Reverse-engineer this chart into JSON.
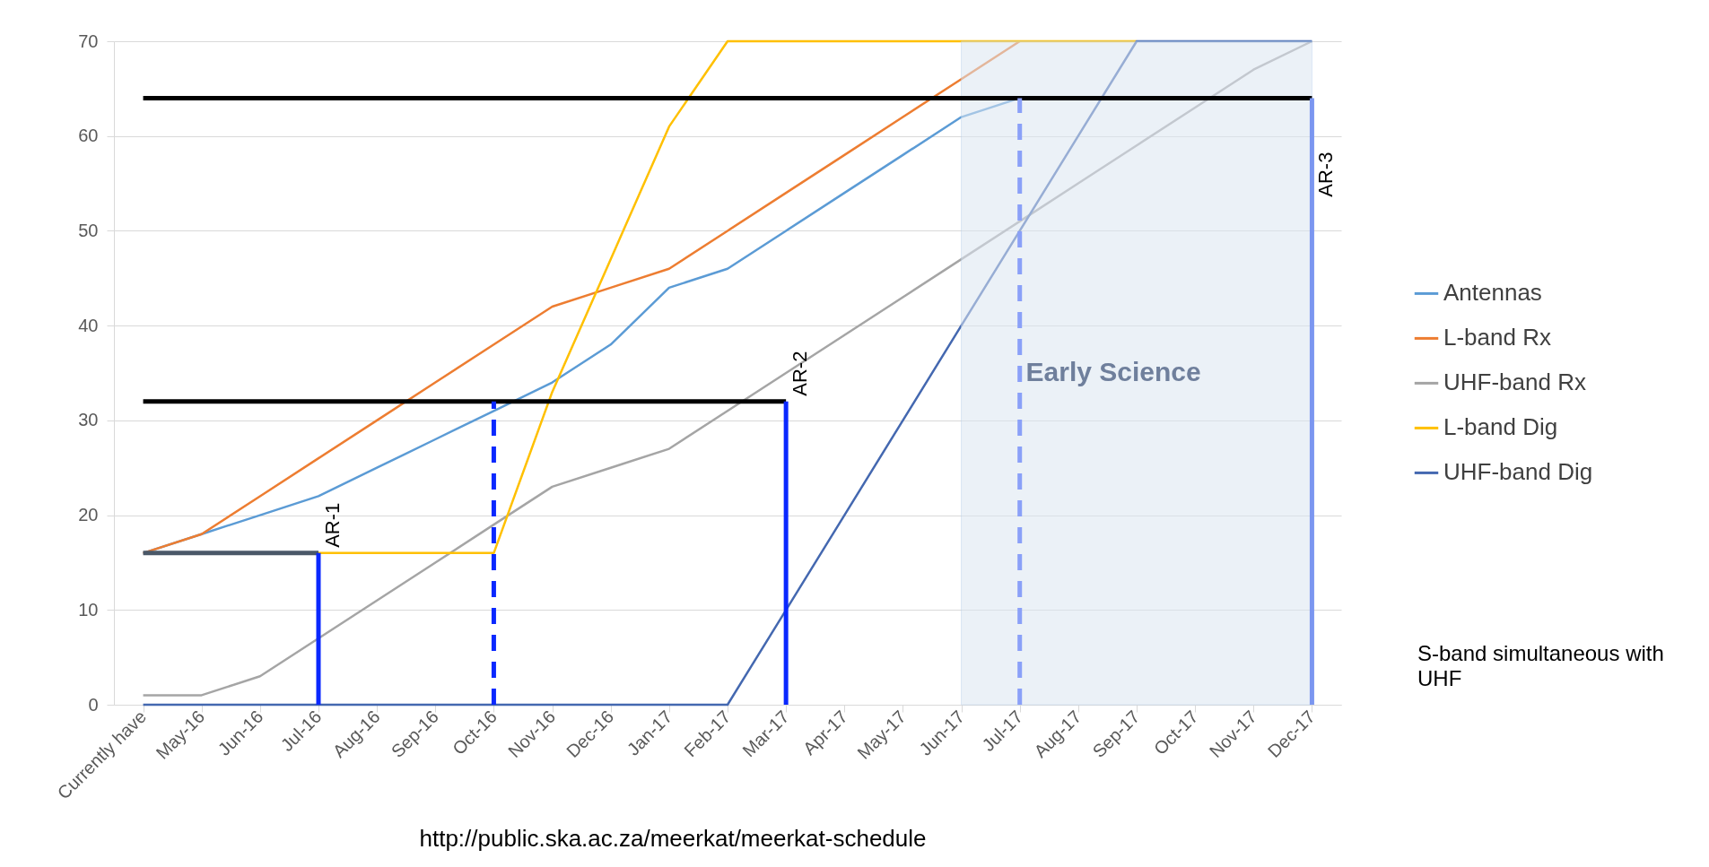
{
  "chart_data": {
    "type": "line",
    "categories": [
      "Currently have",
      "May-16",
      "Jun-16",
      "Jul-16",
      "Aug-16",
      "Sep-16",
      "Oct-16",
      "Nov-16",
      "Dec-16",
      "Jan-17",
      "Feb-17",
      "Mar-17",
      "Apr-17",
      "May-17",
      "Jun-17",
      "Jul-17",
      "Aug-17",
      "Sep-17",
      "Oct-17",
      "Nov-17",
      "Dec-17"
    ],
    "series": [
      {
        "name": "Antennas",
        "color": "#5b9bd5",
        "values": [
          16,
          18,
          20,
          22,
          25,
          28,
          31,
          34,
          38,
          44,
          46,
          50,
          54,
          58,
          62,
          64,
          null,
          null,
          null,
          null,
          null
        ]
      },
      {
        "name": "L-band Rx",
        "color": "#ed7d31",
        "values": [
          16,
          18,
          22,
          26,
          30,
          34,
          38,
          42,
          44,
          46,
          50,
          54,
          58,
          62,
          66,
          70,
          null,
          null,
          null,
          null,
          null
        ]
      },
      {
        "name": "UHF-band Rx",
        "color": "#a5a5a5",
        "values": [
          1,
          1,
          3,
          7,
          11,
          15,
          19,
          23,
          25,
          27,
          31,
          35,
          39,
          43,
          47,
          51,
          55,
          59,
          63,
          67,
          70
        ]
      },
      {
        "name": "L-band Dig",
        "color": "#ffc000",
        "values": [
          null,
          null,
          null,
          16,
          16,
          16,
          16,
          33,
          47,
          61,
          70,
          70,
          70,
          70,
          70,
          70,
          70,
          70,
          null,
          null,
          null
        ]
      },
      {
        "name": "UHF-band Dig",
        "color": "#4468b0",
        "values": [
          0,
          0,
          0,
          0,
          0,
          0,
          0,
          0,
          0,
          0,
          0,
          10,
          20,
          30,
          40,
          50,
          60,
          70,
          70,
          70,
          70
        ]
      },
      {
        "type": "line",
        "color": "#4a5868",
        "x": [
          "Currently have",
          "Jul-16"
        ],
        "values": [
          16,
          16
        ]
      },
      {
        "type": "line",
        "color": "#0a28ff",
        "x": [
          "Jul-16",
          "Jul-16"
        ],
        "values": [
          0,
          16
        ]
      },
      {
        "type": "line",
        "color": "#000000",
        "x": [
          "Currently have",
          "Mar-17"
        ],
        "values": [
          32,
          32
        ]
      },
      {
        "type": "line",
        "color": "#0a28ff",
        "line_style": "dashed",
        "x": [
          "Oct-16",
          "Oct-16"
        ],
        "values": [
          0,
          32
        ]
      },
      {
        "type": "line",
        "color": "#0a28ff",
        "x": [
          "Mar-17",
          "Mar-17"
        ],
        "values": [
          0,
          32
        ]
      },
      {
        "type": "line",
        "color": "#000000",
        "x": [
          "Currently have",
          "Dec-17"
        ],
        "values": [
          64,
          64
        ]
      },
      {
        "type": "line",
        "color": "#8aa0f8",
        "line_style": "dashed",
        "x": [
          "Jul-17",
          "Jul-17"
        ],
        "values": [
          0,
          64
        ]
      },
      {
        "type": "line",
        "color": "#7b96f0",
        "x": [
          "Dec-17",
          "Dec-17"
        ],
        "values": [
          0,
          64
        ]
      }
    ],
    "bands": [
      {
        "axis": "x",
        "from": "Jun-17",
        "to": "Dec-17",
        "label": "Early Science",
        "color": "#dce6f2"
      }
    ],
    "annotations": [
      {
        "text": "AR-1",
        "x": "Jul-16",
        "y": 16
      },
      {
        "text": "AR-2",
        "x": "Mar-17",
        "y": 32
      },
      {
        "text": "AR-3",
        "x": "Dec-17",
        "y": 53
      },
      "S-band simultaneous with UHF",
      "http://public.ska.ac.za/meerkat/meerkat-schedule"
    ],
    "ylim": [
      0,
      70
    ],
    "yticks": [
      0,
      10,
      20,
      30,
      40,
      50,
      60,
      70
    ],
    "grid": "y",
    "legend": "right"
  }
}
